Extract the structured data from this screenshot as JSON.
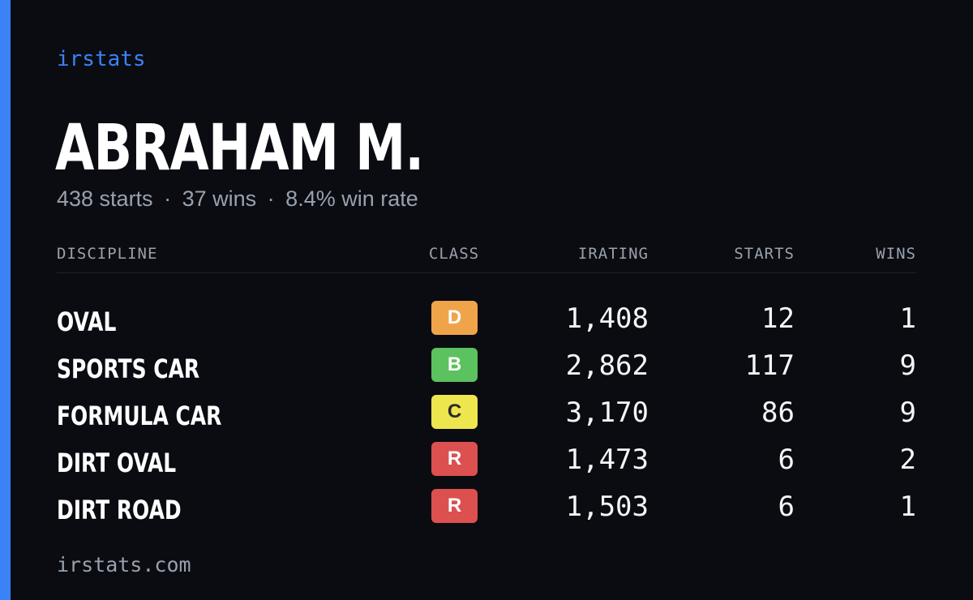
{
  "colors": {
    "accent": "#3b82f6",
    "background": "#0a0c12",
    "muted": "#9aa1ad",
    "class_D": "#f0a44a",
    "class_B": "#5cc15f",
    "class_C": "#ede64e",
    "class_R": "#dc5050"
  },
  "brand": "irstats",
  "driver": {
    "name": "ABRAHAM M.",
    "starts": "438 starts",
    "wins": "37 wins",
    "win_rate": "8.4% win rate",
    "separator": "·"
  },
  "table": {
    "headers": {
      "discipline": "DISCIPLINE",
      "class": "CLASS",
      "irating": "IRATING",
      "starts": "STARTS",
      "wins": "WINS"
    },
    "rows": [
      {
        "discipline": "OVAL",
        "class": "D",
        "class_color": "#f0a44a",
        "class_text": "#ffffff",
        "irating": "1,408",
        "starts": "12",
        "wins": "1"
      },
      {
        "discipline": "SPORTS CAR",
        "class": "B",
        "class_color": "#5cc15f",
        "class_text": "#ffffff",
        "irating": "2,862",
        "starts": "117",
        "wins": "9"
      },
      {
        "discipline": "FORMULA CAR",
        "class": "C",
        "class_color": "#ede64e",
        "class_text": "#2a2a2a",
        "irating": "3,170",
        "starts": "86",
        "wins": "9"
      },
      {
        "discipline": "DIRT OVAL",
        "class": "R",
        "class_color": "#dc5050",
        "class_text": "#ffffff",
        "irating": "1,473",
        "starts": "6",
        "wins": "2"
      },
      {
        "discipline": "DIRT ROAD",
        "class": "R",
        "class_color": "#dc5050",
        "class_text": "#ffffff",
        "irating": "1,503",
        "starts": "6",
        "wins": "1"
      }
    ]
  },
  "footer": "irstats.com"
}
